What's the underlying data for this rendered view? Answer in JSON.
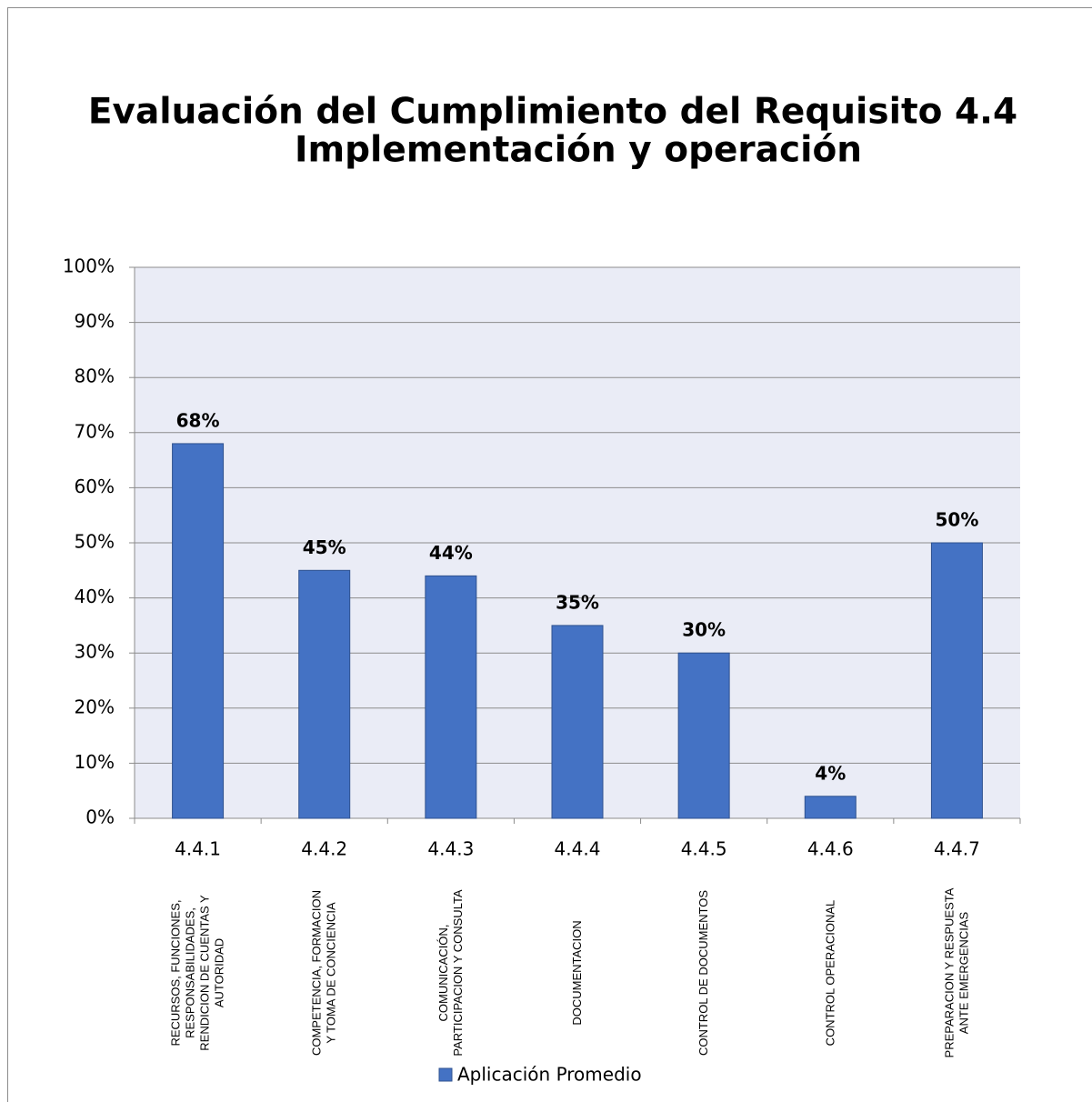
{
  "chart_data": {
    "type": "bar",
    "title": "Evaluación del Cumplimiento del Requisito 4.4",
    "subtitle": "Implementación y operación",
    "categories": [
      "4.4.1",
      "4.4.2",
      "4.4.3",
      "4.4.4",
      "4.4.5",
      "4.4.6",
      "4.4.7"
    ],
    "category_descriptions": [
      "RECURSOS, FUNCIONES, RESPONSABILIDADES, RENDICION DE CUENTAS Y AUTORIDAD",
      "COMPETENCIA, FORMACION Y TOMA DE CONCIENCIA",
      "COMUNICACIÓN, PARTICIPACION Y CONSULTA",
      "DOCUMENTACION",
      "CONTROL DE DOCUMENTOS",
      "CONTROL OPERACIONAL",
      "PREPARACION Y RESPUESTA ANTE EMERGENCIAS"
    ],
    "series": [
      {
        "name": "Aplicación Promedio",
        "color": "#4472c4",
        "values": [
          68,
          45,
          44,
          35,
          30,
          4,
          50
        ],
        "value_labels": [
          "68%",
          "45%",
          "44%",
          "35%",
          "30%",
          "4%",
          "50%"
        ]
      }
    ],
    "ylim": [
      0,
      100
    ],
    "yticks": [
      {
        "value": 0,
        "label": "0%"
      },
      {
        "value": 10,
        "label": "10%"
      },
      {
        "value": 20,
        "label": "20%"
      },
      {
        "value": 30,
        "label": "30%"
      },
      {
        "value": 40,
        "label": "40%"
      },
      {
        "value": 50,
        "label": "50%"
      },
      {
        "value": 60,
        "label": "60%"
      },
      {
        "value": 70,
        "label": "70%"
      },
      {
        "value": 80,
        "label": "80%"
      },
      {
        "value": 90,
        "label": "90%"
      },
      {
        "value": 100,
        "label": "100%"
      }
    ],
    "grid": true,
    "legend": "bottom"
  }
}
